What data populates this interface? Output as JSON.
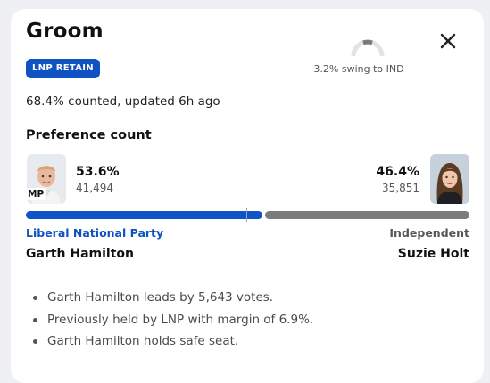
{
  "header": {
    "title": "Groom",
    "close_icon": "close-icon",
    "swing_text": "3.2% swing to IND"
  },
  "status": {
    "badge": "LNP RETAIN",
    "badge_color": "#1152c3",
    "counted": "68.4% counted, updated 6h ago"
  },
  "preference": {
    "heading": "Preference count",
    "left": {
      "percent": "53.6%",
      "percent_value": 53.6,
      "votes": "41,494",
      "tag": "MP",
      "party": "Liberal National Party",
      "name": "Garth Hamilton",
      "color": "#0e54c4"
    },
    "right": {
      "percent": "46.4%",
      "percent_value": 46.4,
      "votes": "35,851",
      "party": "Independent",
      "name": "Suzie Holt",
      "color": "#7b7b7b"
    }
  },
  "notes": [
    "Garth Hamilton leads by 5,643 votes.",
    "Previously held by LNP with margin of 6.9%.",
    "Garth Hamilton holds safe seat."
  ]
}
